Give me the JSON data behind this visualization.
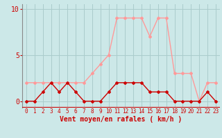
{
  "x": [
    0,
    1,
    2,
    3,
    4,
    5,
    6,
    7,
    8,
    9,
    10,
    11,
    12,
    13,
    14,
    15,
    16,
    17,
    18,
    19,
    20,
    21,
    22,
    23
  ],
  "wind_avg": [
    0,
    0,
    1,
    2,
    1,
    2,
    1,
    0,
    0,
    0,
    1,
    2,
    2,
    2,
    2,
    1,
    1,
    1,
    0,
    0,
    0,
    0,
    1,
    0
  ],
  "wind_gust": [
    2,
    2,
    2,
    2,
    2,
    2,
    2,
    2,
    3,
    4,
    5,
    9,
    9,
    9,
    9,
    7,
    9,
    9,
    3,
    3,
    3,
    0,
    2,
    2
  ],
  "bg_color": "#cce8e8",
  "grid_color": "#aacccc",
  "avg_color": "#cc0000",
  "gust_color": "#ff9999",
  "xlabel": "Vent moyen/en rafales ( km/h )",
  "xlim": [
    -0.5,
    23.5
  ],
  "ylim": [
    -0.7,
    10.5
  ],
  "yticks": [
    0,
    5,
    10
  ],
  "xticks": [
    0,
    1,
    2,
    3,
    4,
    5,
    6,
    7,
    8,
    9,
    10,
    11,
    12,
    13,
    14,
    15,
    16,
    17,
    18,
    19,
    20,
    21,
    22,
    23
  ]
}
